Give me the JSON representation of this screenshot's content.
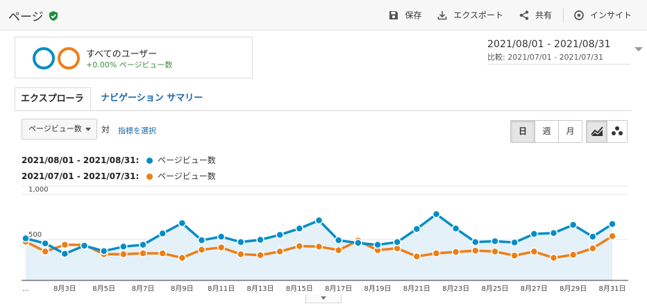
{
  "header": {
    "title": "ページ",
    "save_label": "保存",
    "export_label": "エクスポート",
    "share_label": "共有",
    "insight_label": "インサイト"
  },
  "segment": {
    "name": "すべてのユーザー",
    "sub": "+0.00% ページビュー数",
    "colors": [
      "#058dc7",
      "#ed7e17"
    ]
  },
  "date_range": {
    "main": "2021/08/01 - 2021/08/31",
    "compare": "比較: 2021/07/01 - 2021/07/31"
  },
  "tabs": [
    "エクスプローラ",
    "ナビゲーション サマリー"
  ],
  "controls": {
    "metric": "ページビュー数",
    "vs": "対",
    "select_metric": "指標を選択",
    "granularity": [
      "日",
      "週",
      "月"
    ],
    "granularity_selected": "日",
    "chart_mode_icons": [
      "line-chart-icon",
      "motion-chart-icon"
    ],
    "chart_mode_selected": "line-chart-icon"
  },
  "legend": [
    {
      "range": "2021/08/01 - 2021/08/31:",
      "name": "ページビュー数",
      "color": "#058dc7"
    },
    {
      "range": "2021/07/01 - 2021/07/31:",
      "name": "ページビュー数",
      "color": "#ed7e17"
    }
  ],
  "chart_data": {
    "type": "line",
    "y_ticks": [
      "1,000",
      "500"
    ],
    "y_tick_values": [
      1000,
      500
    ],
    "ylim": [
      0,
      1000
    ],
    "x_ticks": [
      "...",
      "8月3日",
      "8月5日",
      "8月7日",
      "8月9日",
      "8月11日",
      "8月13日",
      "8月15日",
      "8月17日",
      "8月19日",
      "8月21日",
      "8月23日",
      "8月25日",
      "8月27日",
      "8月29日",
      "8月31日"
    ],
    "x": [
      "8月1日",
      "8月2日",
      "8月3日",
      "8月4日",
      "8月5日",
      "8月6日",
      "8月7日",
      "8月8日",
      "8月9日",
      "8月10日",
      "8月11日",
      "8月12日",
      "8月13日",
      "8月14日",
      "8月15日",
      "8月16日",
      "8月17日",
      "8月18日",
      "8月19日",
      "8月20日",
      "8月21日",
      "8月22日",
      "8月23日",
      "8月24日",
      "8月25日",
      "8月26日",
      "8月27日",
      "8月28日",
      "8月29日",
      "8月30日",
      "8月31日"
    ],
    "series": [
      {
        "name": "ページビュー数",
        "color": "#058dc7",
        "fill": true,
        "values": [
          465,
          410,
          295,
          385,
          325,
          375,
          395,
          520,
          635,
          445,
          485,
          425,
          450,
          505,
          575,
          665,
          445,
          415,
          395,
          425,
          570,
          735,
          575,
          425,
          435,
          420,
          515,
          525,
          615,
          485,
          625
        ]
      },
      {
        "name": "ページビュー数",
        "color": "#ed7e17",
        "fill": false,
        "values": [
          430,
          320,
          395,
          395,
          290,
          290,
          300,
          300,
          250,
          340,
          365,
          290,
          280,
          320,
          380,
          375,
          335,
          440,
          335,
          355,
          265,
          300,
          315,
          330,
          320,
          275,
          320,
          250,
          285,
          355,
          490
        ]
      }
    ]
  }
}
